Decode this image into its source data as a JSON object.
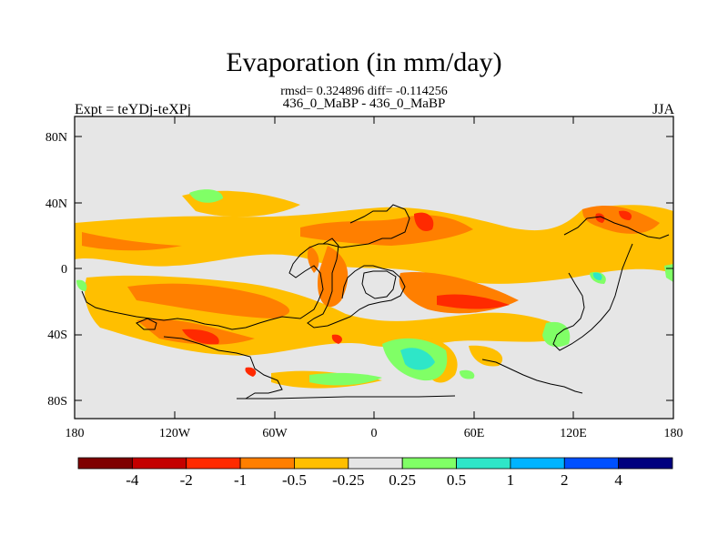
{
  "title": "Evaporation (in mm/day)",
  "stats_line": "rmsd= 0.324896 diff= -0.114256",
  "case_line": "436_0_MaBP - 436_0_MaBP",
  "left_label": "Expt = teYDj-teXPj",
  "right_label": "JJA",
  "lat_ticks": [
    "80N",
    "40N",
    "0",
    "40S",
    "80S"
  ],
  "lon_ticks": [
    "180",
    "120W",
    "60W",
    "0",
    "60E",
    "120E",
    "180"
  ],
  "colorbar": {
    "colors": [
      "#7f0000",
      "#c40000",
      "#ff2a00",
      "#ff7f00",
      "#ffbf00",
      "#e6e6e6",
      "#80ff66",
      "#2ee6c8",
      "#00b4ff",
      "#0050ff",
      "#00007f"
    ],
    "labels": [
      "-4",
      "-2",
      "-1",
      "-0.5",
      "-0.25",
      "0.25",
      "0.5",
      "1",
      "2",
      "4"
    ]
  },
  "background_color": "#e6e6e6"
}
